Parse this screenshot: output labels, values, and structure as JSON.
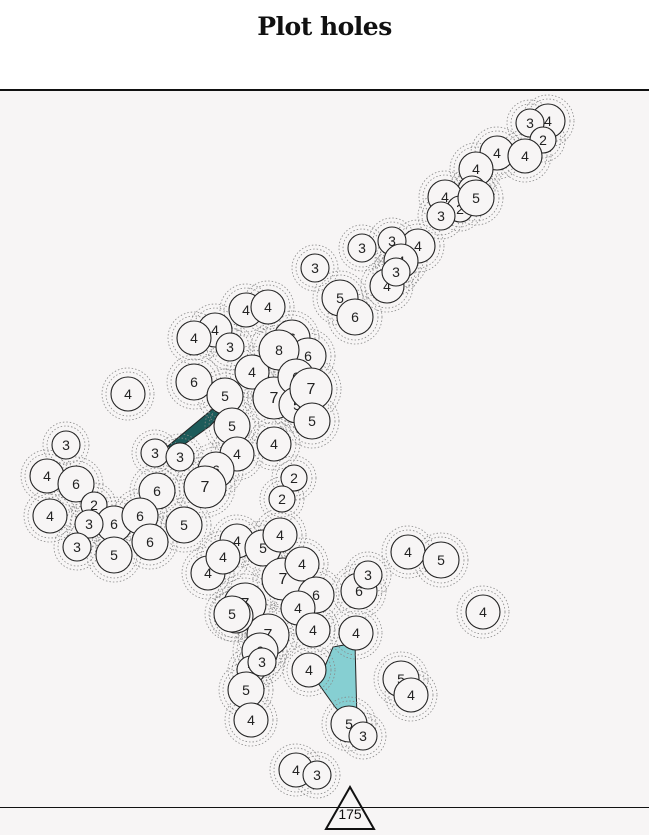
{
  "title": "Plot holes",
  "marker_label": "175",
  "colors": {
    "background": "#f7f5f5",
    "circle_fill": "#f7f5f5",
    "circle_stroke": "#222222",
    "halo_stroke": "#888888",
    "dark_shape": "#1d5b5a",
    "light_shape": "#86cfd2"
  },
  "holes": [
    "4",
    "3",
    "2",
    "4",
    "4",
    "4",
    "3",
    "4",
    "2",
    "5",
    "3",
    "4",
    "3",
    "3",
    "3",
    "4",
    "4",
    "3",
    "5",
    "6",
    "4",
    "4",
    "4",
    "4",
    "6",
    "6",
    "3",
    "6",
    "5",
    "4",
    "7",
    "8",
    "6",
    "4",
    "5",
    "7",
    "5",
    "3",
    "3",
    "3",
    "4",
    "5",
    "4",
    "4",
    "6",
    "2",
    "6",
    "2",
    "4",
    "7",
    "6",
    "6",
    "6",
    "5",
    "3",
    "3",
    "5",
    "6",
    "4",
    "5",
    "4",
    "7",
    "4",
    "4",
    "7",
    "4",
    "6",
    "6",
    "4",
    "7",
    "4",
    "4",
    "4",
    "3",
    "4",
    "6",
    "3",
    "5",
    "4",
    "5",
    "4",
    "2",
    "4",
    "5",
    "5",
    "4",
    "3",
    "4",
    "3",
    "5",
    "3"
  ]
}
